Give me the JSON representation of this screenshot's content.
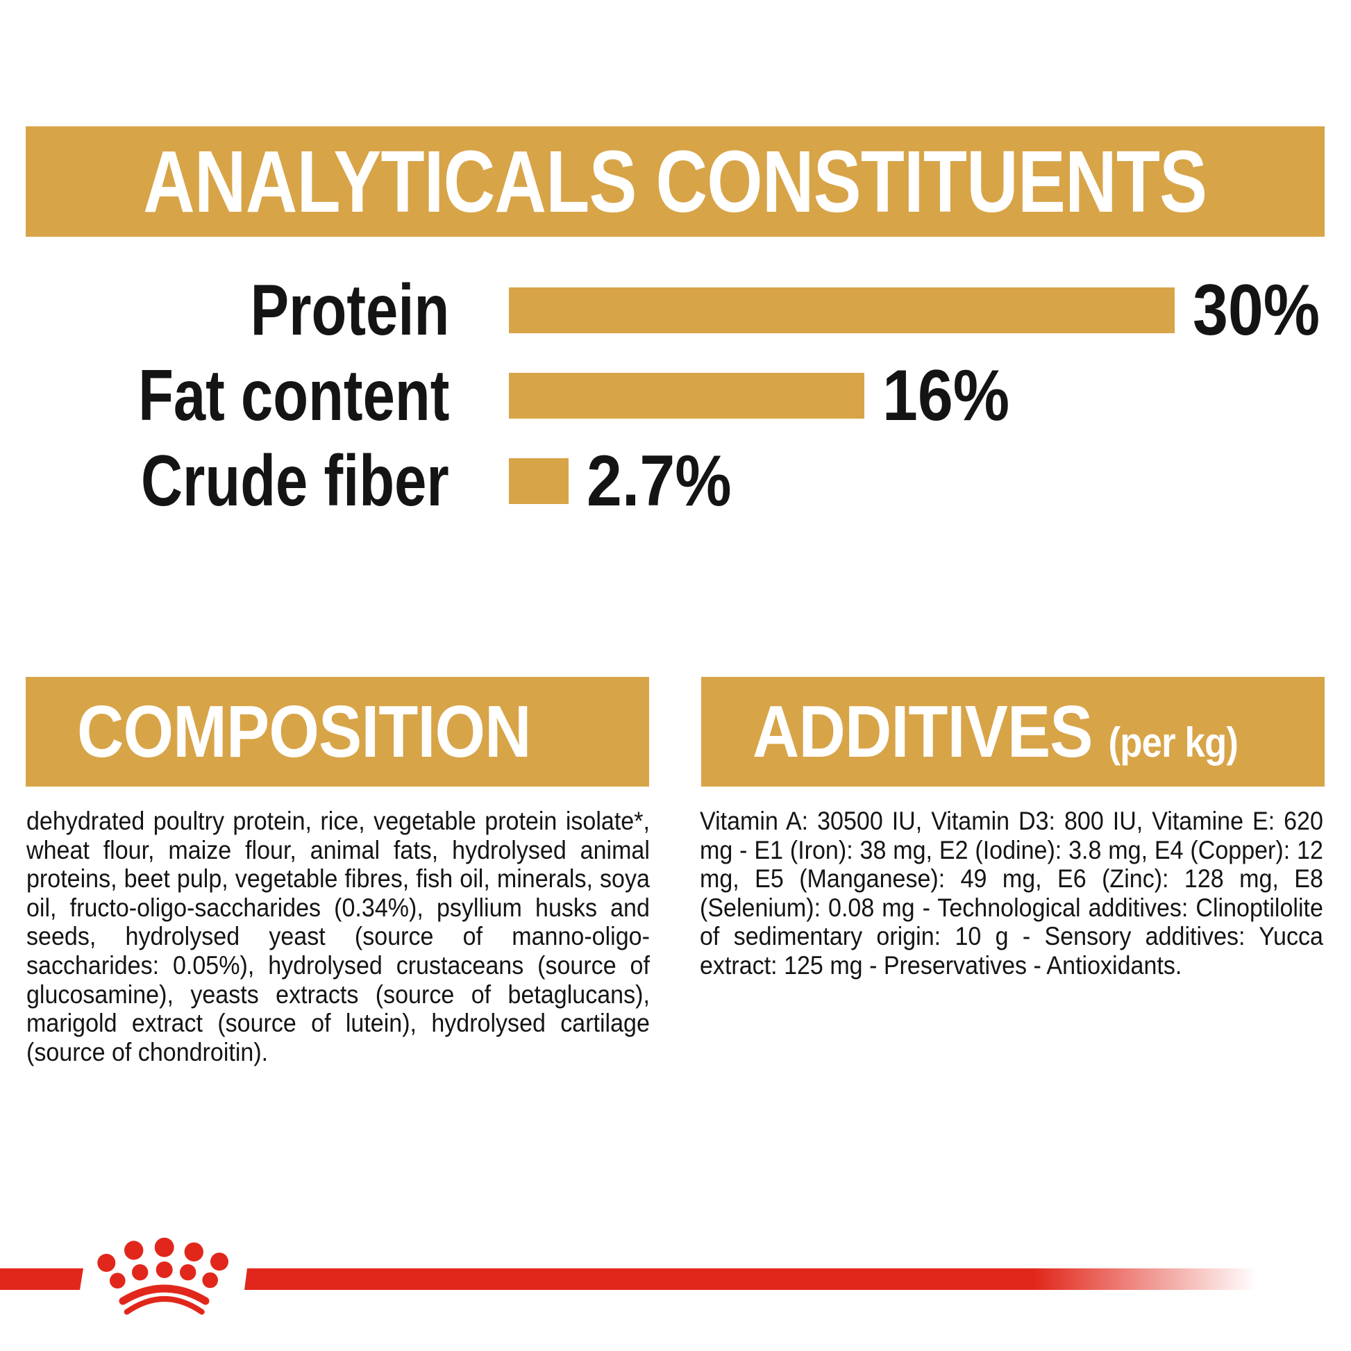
{
  "colors": {
    "gold": "#D8A448",
    "red": "#E1271B",
    "text": "#141414",
    "header_text": "#FFFFFF",
    "background": "#FFFFFF"
  },
  "analyticals": {
    "title": "ANALYTICALS CONSTITUENTS"
  },
  "chart_data": {
    "type": "bar",
    "orientation": "horizontal",
    "title": "ANALYTICALS CONSTITUENTS",
    "categories": [
      "Protein",
      "Fat content",
      "Crude fiber"
    ],
    "values": [
      30,
      16,
      2.7
    ],
    "value_labels": [
      "30%",
      "16%",
      "2.7%"
    ],
    "unit": "%",
    "xlim": [
      0,
      30
    ],
    "grid": false,
    "legend": false,
    "bar_color": "#D8A448"
  },
  "composition": {
    "title": "COMPOSITION",
    "body": "dehydrated poultry protein, rice, vegetable protein isolate*, wheat flour, maize flour, animal fats, hydrolysed animal proteins, beet pulp, vegetable fibres, fish oil, minerals, soya oil, fructo-oligo-saccharides (0.34%), psyllium husks and seeds, hydrolysed yeast (source of manno-oligo-saccharides: 0.05%), hydrolysed crustaceans (source of glucosamine), yeasts extracts (source of betaglucans), marigold extract (source of lutein), hydrolysed cartilage (source of chondroitin)."
  },
  "additives": {
    "title": "ADDITIVES",
    "unit_label": "(per kg)",
    "body": "Vitamin A: 30500 IU, Vitamin D3: 800 IU, Vitamine E: 620 mg - E1 (Iron): 38 mg, E2 (Iodine): 3.8 mg, E4 (Copper): 12 mg, E5 (Manganese): 49 mg, E6 (Zinc): 128 mg, E8 (Selenium): 0.08 mg - Technological additives: Clinoptilolite of sedimentary origin: 10 g - Sensory additives: Yucca extract: 125 mg - Preservatives - Antioxidants."
  },
  "footer": {
    "logo_icon": "royal-canin-crown-icon"
  }
}
